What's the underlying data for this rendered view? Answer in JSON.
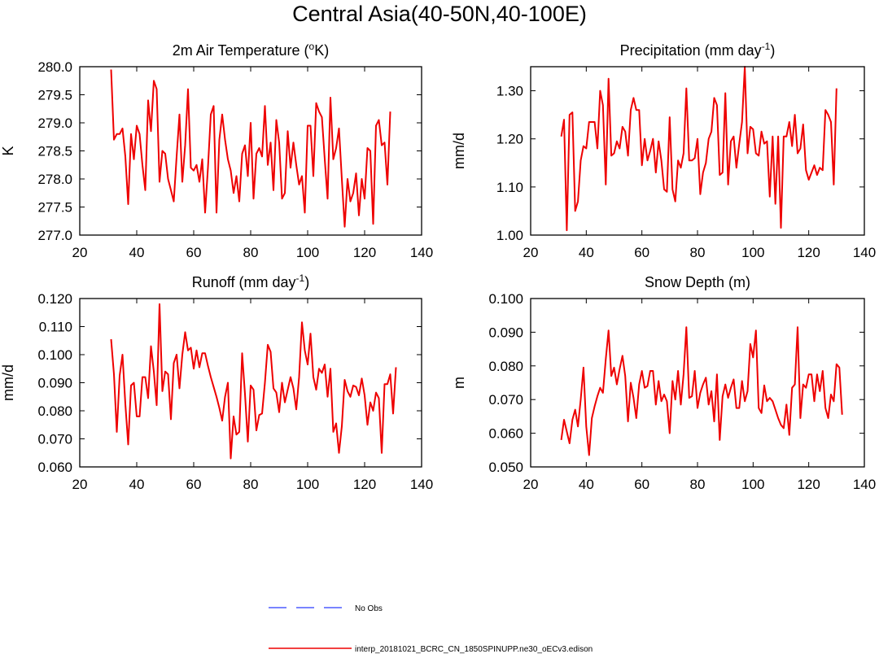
{
  "title": "Central Asia(40-50N,40-100E)",
  "colors": {
    "model": "#ee0000",
    "obs": "#4d5cff",
    "axis": "#000000"
  },
  "legend": [
    {
      "label": "No Obs",
      "style": "dashed",
      "color": "#4d5cff"
    },
    {
      "label": "interp_20181021_BCRC_CN_1850SPINUPP.ne30_oECv3.edison",
      "style": "solid",
      "color": "#ee0000"
    }
  ],
  "chart_data": [
    {
      "type": "line",
      "title_main": "2m Air Temperature (",
      "title_sup": "o",
      "title_end": "K)",
      "ylabel": "K",
      "xlim": [
        20,
        140
      ],
      "xticks": [
        20,
        40,
        60,
        80,
        100,
        120,
        140
      ],
      "xtick_labels": [
        "20",
        "40",
        "60",
        "80",
        "100",
        "120",
        "140"
      ],
      "ylim": [
        277.0,
        280.0
      ],
      "yticks": [
        277.0,
        277.5,
        278.0,
        278.5,
        279.0,
        279.5,
        280.0
      ],
      "ytick_labels": [
        "277.0",
        "277.5",
        "278.0",
        "278.5",
        "279.0",
        "279.5",
        "280.0"
      ],
      "x_start": 31,
      "series": [
        {
          "name": "interp_20181021_BCRC_CN_1850SPINUPP.ne30_oECv3.edison",
          "values": [
            279.95,
            278.7,
            278.8,
            278.8,
            278.9,
            278.4,
            277.55,
            278.8,
            278.35,
            278.95,
            278.8,
            278.25,
            277.8,
            279.4,
            278.85,
            279.75,
            279.6,
            277.95,
            278.5,
            278.45,
            278.0,
            277.8,
            277.6,
            278.4,
            279.15,
            277.95,
            278.6,
            279.6,
            278.2,
            278.15,
            278.25,
            277.95,
            278.35,
            277.4,
            278.2,
            279.15,
            279.3,
            277.4,
            278.7,
            279.15,
            278.7,
            278.35,
            278.15,
            277.75,
            278.05,
            277.6,
            278.45,
            278.6,
            278.05,
            279.0,
            277.65,
            278.45,
            278.55,
            278.4,
            279.3,
            278.25,
            278.65,
            277.8,
            279.05,
            278.65,
            277.65,
            277.75,
            278.85,
            278.2,
            278.65,
            278.25,
            277.9,
            278.05,
            277.4,
            278.95,
            278.95,
            278.05,
            279.35,
            279.2,
            279.1,
            278.35,
            277.65,
            279.45,
            278.35,
            278.55,
            278.9,
            278.0,
            277.15,
            278.0,
            277.6,
            277.75,
            278.1,
            277.35,
            278.0,
            277.65,
            278.55,
            278.5,
            277.2,
            278.95,
            279.05,
            278.6,
            278.65,
            277.9,
            279.2
          ]
        }
      ]
    },
    {
      "type": "line",
      "title_main": "Precipitation (mm day",
      "title_sup": "-1",
      "title_end": ")",
      "ylabel": "mm/d",
      "xlim": [
        20,
        140
      ],
      "xticks": [
        20,
        40,
        60,
        80,
        100,
        120,
        140
      ],
      "xtick_labels": [
        "20",
        "40",
        "60",
        "80",
        "100",
        "120",
        "140"
      ],
      "ylim": [
        1.0,
        1.35
      ],
      "yticks": [
        1.0,
        1.1,
        1.2,
        1.3
      ],
      "ytick_labels": [
        "1.00",
        "1.10",
        "1.20",
        "1.30"
      ],
      "x_start": 31,
      "series": [
        {
          "name": "interp_20181021_BCRC_CN_1850SPINUPP.ne30_oECv3.edison",
          "values": [
            1.205,
            1.24,
            1.01,
            1.25,
            1.255,
            1.05,
            1.07,
            1.155,
            1.185,
            1.18,
            1.235,
            1.235,
            1.235,
            1.18,
            1.3,
            1.27,
            1.105,
            1.325,
            1.165,
            1.17,
            1.195,
            1.18,
            1.225,
            1.215,
            1.165,
            1.26,
            1.285,
            1.26,
            1.26,
            1.145,
            1.2,
            1.155,
            1.175,
            1.2,
            1.13,
            1.195,
            1.155,
            1.095,
            1.09,
            1.245,
            1.095,
            1.07,
            1.155,
            1.14,
            1.17,
            1.305,
            1.155,
            1.155,
            1.16,
            1.2,
            1.085,
            1.13,
            1.15,
            1.2,
            1.215,
            1.285,
            1.27,
            1.125,
            1.13,
            1.295,
            1.105,
            1.195,
            1.205,
            1.14,
            1.19,
            1.235,
            1.35,
            1.17,
            1.225,
            1.22,
            1.17,
            1.165,
            1.215,
            1.19,
            1.195,
            1.08,
            1.205,
            1.065,
            1.205,
            1.015,
            1.205,
            1.205,
            1.235,
            1.185,
            1.25,
            1.17,
            1.18,
            1.23,
            1.135,
            1.115,
            1.13,
            1.145,
            1.125,
            1.14,
            1.135,
            1.26,
            1.25,
            1.235,
            1.105,
            1.305
          ]
        }
      ]
    },
    {
      "type": "line",
      "title_main": "Runoff (mm day",
      "title_sup": "-1",
      "title_end": ")",
      "ylabel": "mm/d",
      "xlim": [
        20,
        140
      ],
      "xticks": [
        20,
        40,
        60,
        80,
        100,
        120,
        140
      ],
      "xtick_labels": [
        "20",
        "40",
        "60",
        "80",
        "100",
        "120",
        "140"
      ],
      "ylim": [
        0.06,
        0.12
      ],
      "yticks": [
        0.06,
        0.07,
        0.08,
        0.09,
        0.1,
        0.11,
        0.12
      ],
      "ytick_labels": [
        "0.060",
        "0.070",
        "0.080",
        "0.090",
        "0.100",
        "0.110",
        "0.120"
      ],
      "x_start": 31,
      "series": [
        {
          "name": "interp_20181021_BCRC_CN_1850SPINUPP.ne30_oECv3.edison",
          "values": [
            0.1055,
            0.093,
            0.0725,
            0.0925,
            0.1,
            0.0825,
            0.068,
            0.089,
            0.09,
            0.078,
            0.078,
            0.092,
            0.092,
            0.0845,
            0.103,
            0.094,
            0.082,
            0.118,
            0.087,
            0.094,
            0.093,
            0.077,
            0.097,
            0.1,
            0.088,
            0.1,
            0.108,
            0.1015,
            0.1025,
            0.095,
            0.1015,
            0.0955,
            0.1005,
            0.1005,
            0.096,
            0.092,
            0.0885,
            0.085,
            0.081,
            0.0765,
            0.085,
            0.09,
            0.063,
            0.078,
            0.0715,
            0.0725,
            0.1005,
            0.086,
            0.069,
            0.089,
            0.0875,
            0.073,
            0.0785,
            0.079,
            0.09,
            0.1035,
            0.101,
            0.088,
            0.0865,
            0.0795,
            0.09,
            0.083,
            0.0875,
            0.092,
            0.088,
            0.0805,
            0.092,
            0.1115,
            0.1015,
            0.0965,
            0.1075,
            0.092,
            0.0875,
            0.095,
            0.0935,
            0.0965,
            0.085,
            0.095,
            0.0725,
            0.0755,
            0.065,
            0.0745,
            0.091,
            0.087,
            0.085,
            0.089,
            0.0885,
            0.0855,
            0.0915,
            0.0855,
            0.075,
            0.083,
            0.08,
            0.0865,
            0.0845,
            0.065,
            0.0895,
            0.0895,
            0.093,
            0.079,
            0.0955
          ]
        }
      ]
    },
    {
      "type": "line",
      "title_main": "Snow Depth (m)",
      "title_sup": "",
      "title_end": "",
      "ylabel": "m",
      "xlim": [
        20,
        140
      ],
      "xticks": [
        20,
        40,
        60,
        80,
        100,
        120,
        140
      ],
      "xtick_labels": [
        "20",
        "40",
        "60",
        "80",
        "100",
        "120",
        "140"
      ],
      "ylim": [
        0.05,
        0.1
      ],
      "yticks": [
        0.05,
        0.06,
        0.07,
        0.08,
        0.09,
        0.1
      ],
      "ytick_labels": [
        "0.050",
        "0.060",
        "0.070",
        "0.080",
        "0.090",
        "0.100"
      ],
      "x_start": 31,
      "series": [
        {
          "name": "interp_20181021_BCRC_CN_1850SPINUPP.ne30_oECv3.edison",
          "values": [
            0.058,
            0.064,
            0.0605,
            0.057,
            0.064,
            0.067,
            0.062,
            0.07,
            0.0795,
            0.062,
            0.0535,
            0.0645,
            0.068,
            0.071,
            0.0735,
            0.072,
            0.082,
            0.0905,
            0.077,
            0.0795,
            0.0745,
            0.079,
            0.083,
            0.077,
            0.0635,
            0.075,
            0.0705,
            0.0645,
            0.0745,
            0.0785,
            0.0735,
            0.074,
            0.0785,
            0.0785,
            0.0685,
            0.0755,
            0.0695,
            0.0715,
            0.0695,
            0.06,
            0.0755,
            0.07,
            0.0785,
            0.0685,
            0.0775,
            0.0915,
            0.0705,
            0.071,
            0.0785,
            0.0675,
            0.072,
            0.0745,
            0.0765,
            0.0685,
            0.0725,
            0.0635,
            0.0775,
            0.058,
            0.071,
            0.0745,
            0.0705,
            0.0735,
            0.076,
            0.0675,
            0.0675,
            0.0755,
            0.0695,
            0.0725,
            0.0865,
            0.0825,
            0.0905,
            0.0675,
            0.066,
            0.0742,
            0.0695,
            0.0705,
            0.0695,
            0.067,
            0.0645,
            0.0625,
            0.0615,
            0.0685,
            0.0595,
            0.0735,
            0.0745,
            0.0915,
            0.0645,
            0.0745,
            0.0735,
            0.0775,
            0.0775,
            0.0695,
            0.0775,
            0.0725,
            0.0785,
            0.0675,
            0.0645,
            0.0715,
            0.0695,
            0.0805,
            0.0795,
            0.0655
          ]
        }
      ]
    }
  ]
}
